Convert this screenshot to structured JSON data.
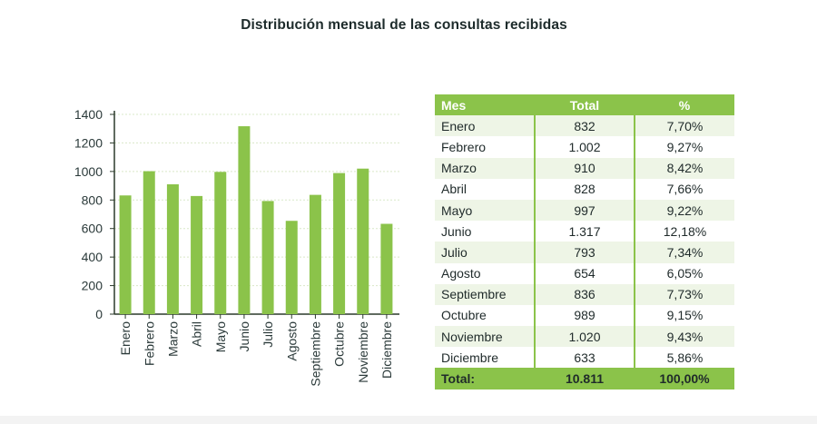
{
  "page": {
    "title": "Distribución mensual de las consultas recibidas"
  },
  "colors": {
    "bar": "#8bc34a",
    "header_bg": "#8bc34a",
    "row_alt": "#eef5e6",
    "text": "#1f2a2a",
    "grid": "#d9e8c8"
  },
  "chart_data": {
    "type": "bar",
    "categories": [
      "Enero",
      "Febrero",
      "Marzo",
      "Abril",
      "Mayo",
      "Junio",
      "Julio",
      "Agosto",
      "Septiembre",
      "Octubre",
      "Noviembre",
      "Diciembre"
    ],
    "values": [
      832,
      1002,
      910,
      828,
      997,
      1317,
      793,
      654,
      836,
      989,
      1020,
      633
    ],
    "yticks": [
      "0",
      "200",
      "400",
      "600",
      "800",
      "1000",
      "1200",
      "1400"
    ],
    "ylim": [
      0,
      1400
    ],
    "grid": true,
    "legend": false
  },
  "table": {
    "headers": {
      "mes": "Mes",
      "total": "Total",
      "pct": "%"
    },
    "rows": [
      {
        "mes": "Enero",
        "total": "832",
        "pct": "7,70%"
      },
      {
        "mes": "Febrero",
        "total": "1.002",
        "pct": "9,27%"
      },
      {
        "mes": "Marzo",
        "total": "910",
        "pct": "8,42%"
      },
      {
        "mes": "Abril",
        "total": "828",
        "pct": "7,66%"
      },
      {
        "mes": "Mayo",
        "total": "997",
        "pct": "9,22%"
      },
      {
        "mes": "Junio",
        "total": "1.317",
        "pct": "12,18%"
      },
      {
        "mes": "Julio",
        "total": "793",
        "pct": "7,34%"
      },
      {
        "mes": "Agosto",
        "total": "654",
        "pct": "6,05%"
      },
      {
        "mes": "Septiembre",
        "total": "836",
        "pct": "7,73%"
      },
      {
        "mes": "Octubre",
        "total": "989",
        "pct": "9,15%"
      },
      {
        "mes": "Noviembre",
        "total": "1.020",
        "pct": "9,43%"
      },
      {
        "mes": "Diciembre",
        "total": "633",
        "pct": "5,86%"
      }
    ],
    "footer": {
      "mes": "Total:",
      "total": "10.811",
      "pct": "100,00%"
    }
  }
}
